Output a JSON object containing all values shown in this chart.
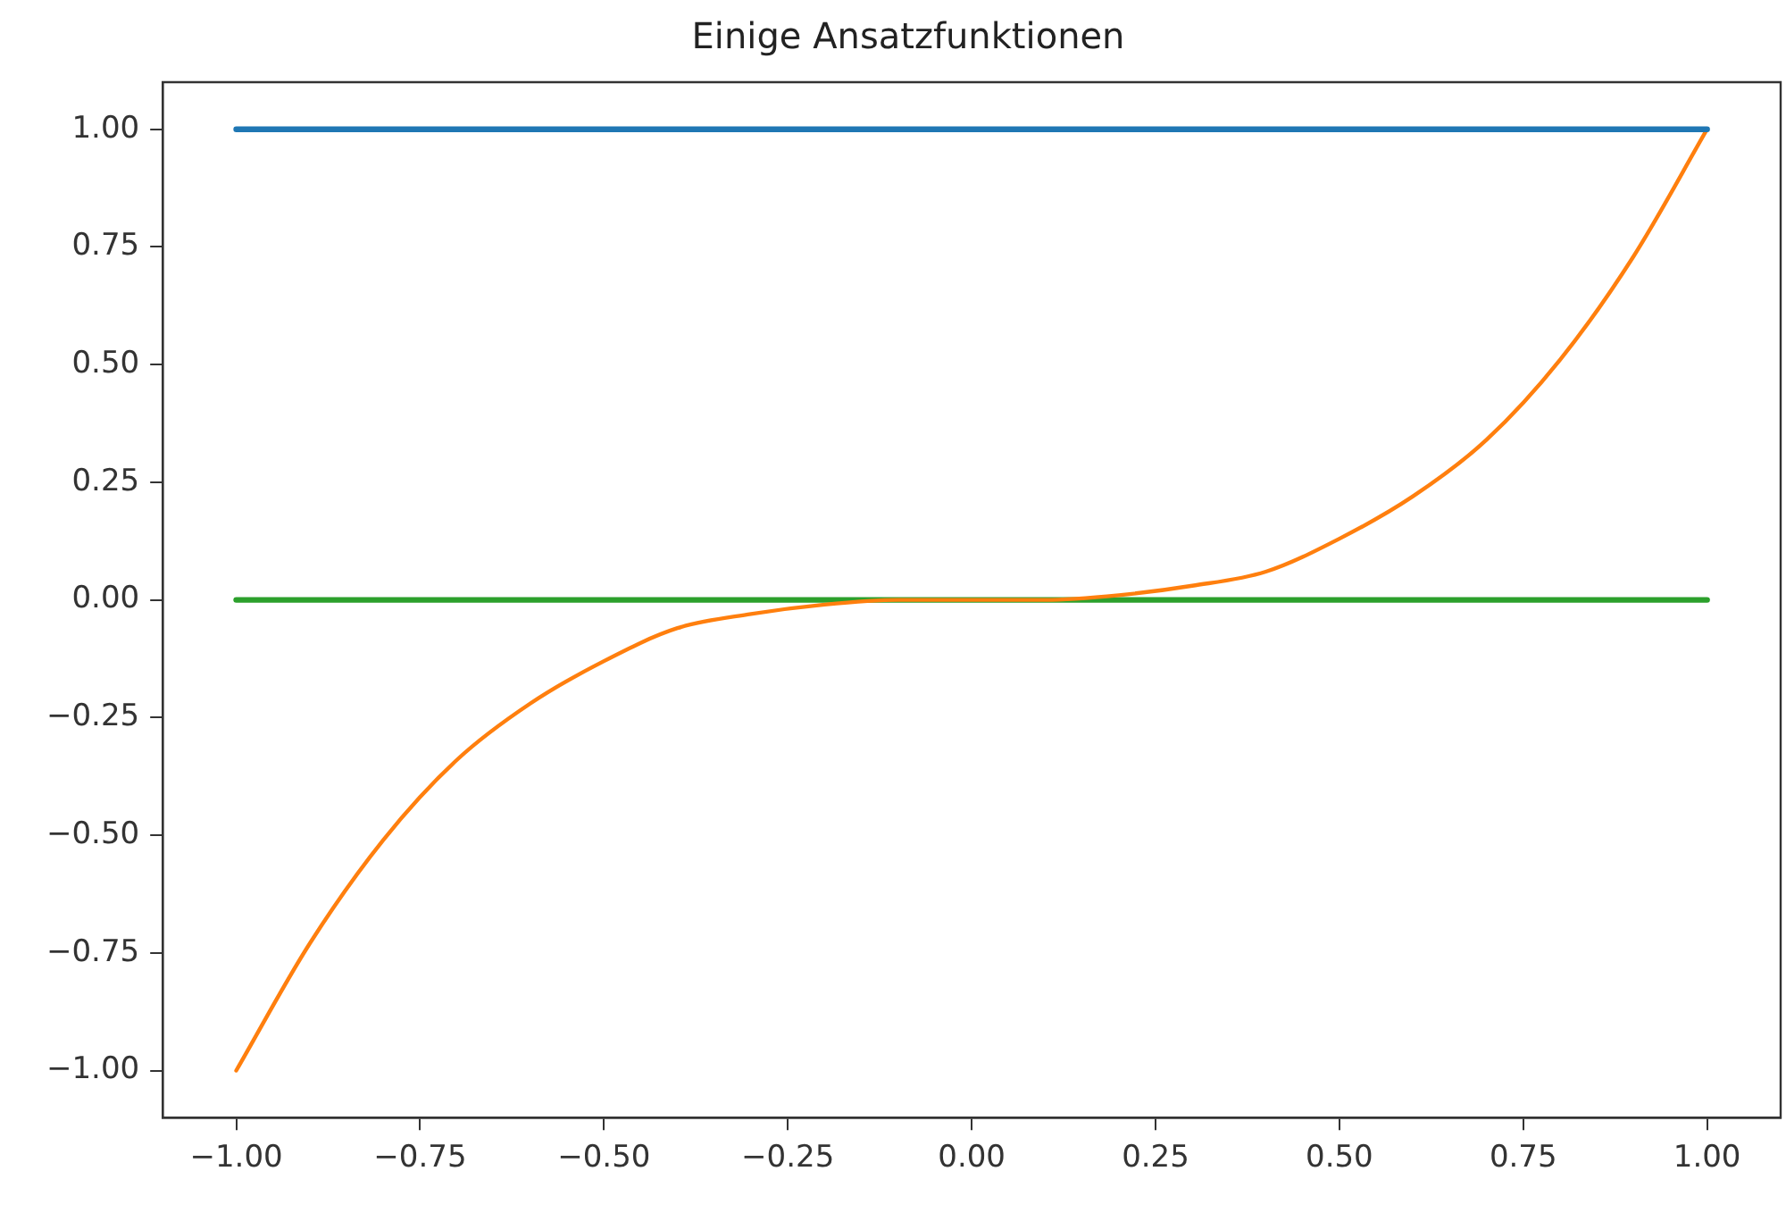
{
  "chart_data": {
    "type": "line",
    "title": "Einige Ansatzfunktionen",
    "xlim": [
      -1.1,
      1.1
    ],
    "ylim": [
      -1.1,
      1.1
    ],
    "xticks": [
      {
        "value": -1,
        "label": "−1.00"
      },
      {
        "value": -0.75,
        "label": "−0.75"
      },
      {
        "value": -0.5,
        "label": "−0.50"
      },
      {
        "value": -0.25,
        "label": "−0.25"
      },
      {
        "value": 0,
        "label": "0.00"
      },
      {
        "value": 0.25,
        "label": "0.25"
      },
      {
        "value": 0.5,
        "label": "0.50"
      },
      {
        "value": 0.75,
        "label": "0.75"
      },
      {
        "value": 1,
        "label": "1.00"
      }
    ],
    "yticks": [
      {
        "value": -1,
        "label": "−1.00"
      },
      {
        "value": -0.75,
        "label": "−0.75"
      },
      {
        "value": -0.5,
        "label": "−0.50"
      },
      {
        "value": -0.25,
        "label": "−0.25"
      },
      {
        "value": 0,
        "label": "0.00"
      },
      {
        "value": 0.25,
        "label": "0.25"
      },
      {
        "value": 0.5,
        "label": "0.50"
      },
      {
        "value": 0.75,
        "label": "0.75"
      },
      {
        "value": 1,
        "label": "1.00"
      }
    ],
    "series": [
      {
        "color": "#1f77b4",
        "x": [
          -1,
          1
        ],
        "values": [
          1,
          1
        ]
      },
      {
        "color": "#ff7f0e",
        "x": [
          -1,
          -0.9,
          -0.8,
          -0.7,
          -0.6,
          -0.5,
          -0.4,
          -0.3,
          -0.2,
          -0.1,
          0,
          0.1,
          0.2,
          0.3,
          0.4,
          0.5,
          0.6,
          0.7,
          0.8,
          0.9,
          1
        ],
        "values": [
          -1,
          -0.73,
          -0.51,
          -0.34,
          -0.22,
          -0.13,
          -0.06,
          -0.03,
          -0.01,
          0,
          0,
          0,
          0.01,
          0.03,
          0.06,
          0.13,
          0.22,
          0.34,
          0.51,
          0.73,
          1
        ]
      },
      {
        "color": "#2ca02c",
        "x": [
          -1,
          1
        ],
        "values": [
          0,
          0
        ]
      }
    ]
  }
}
